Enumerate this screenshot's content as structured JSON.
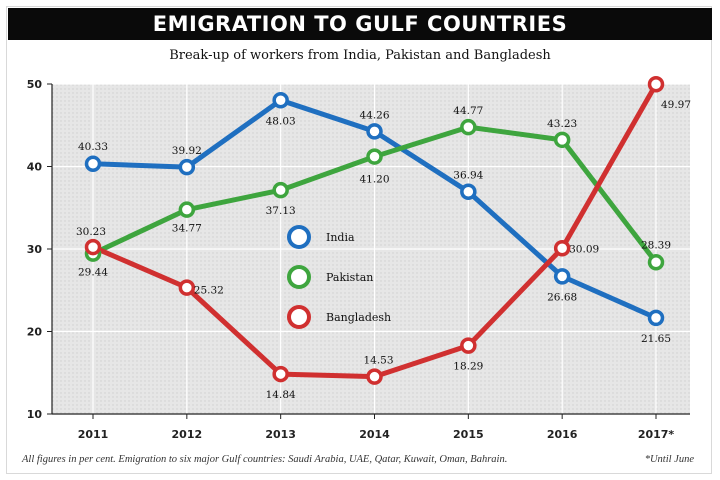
{
  "header": {
    "title": "EMIGRATION TO GULF COUNTRIES",
    "subtitle": "Break-up of workers from India, Pakistan and Bangladesh"
  },
  "footer": {
    "note": "All figures in per cent. Emigration to six major Gulf countries: Saudi Arabia, UAE, Qatar, Kuwait, Oman, Bahrain.",
    "until": "*Until June"
  },
  "chart_data": {
    "type": "line",
    "title": "EMIGRATION TO GULF COUNTRIES",
    "subtitle": "Break-up of workers from India, Pakistan and Bangladesh",
    "categories": [
      "2011",
      "2012",
      "2013",
      "2014",
      "2015",
      "2016",
      "2017*"
    ],
    "ylim": [
      10,
      50
    ],
    "yticks": [
      10,
      20,
      30,
      40,
      50
    ],
    "grid": true,
    "legend": "center",
    "series": [
      {
        "name": "India",
        "color": "#1f6fc0",
        "values": [
          40.33,
          39.92,
          48.03,
          44.26,
          36.94,
          26.68,
          21.65
        ]
      },
      {
        "name": "Pakistan",
        "color": "#3ea53e",
        "values": [
          29.44,
          34.77,
          37.13,
          41.2,
          44.77,
          43.23,
          28.39
        ]
      },
      {
        "name": "Bangladesh",
        "color": "#d03030",
        "values": [
          30.23,
          25.32,
          14.84,
          14.53,
          18.29,
          30.09,
          49.97
        ]
      }
    ],
    "labels": [
      [
        "40.33",
        "39.92",
        "48.03",
        "44.26",
        "36.94",
        "26.68",
        "21.65"
      ],
      [
        "29.44",
        "34.77",
        "37.13",
        "41.20",
        "44.77",
        "43.23",
        "28.39"
      ],
      [
        "30.23",
        "25.32",
        "14.84",
        "14.53",
        "18.29",
        "30.09",
        "49.97"
      ]
    ]
  }
}
